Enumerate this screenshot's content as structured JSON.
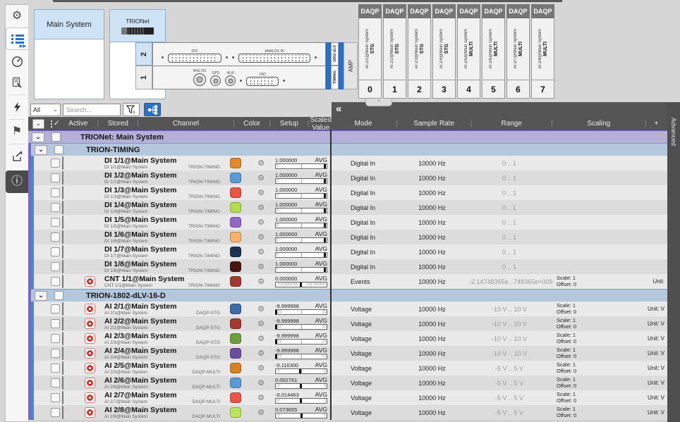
{
  "system_boxes": {
    "main_system": {
      "title": "Main System"
    },
    "trionet": {
      "title": "TRIONet"
    }
  },
  "hardware": {
    "slot2": {
      "number": "2",
      "dio_label": "DIO",
      "analog_label": "ANALOG IN",
      "module_tag": "1802-dLV"
    },
    "slot1": {
      "number": "1",
      "irig_label": "IRIG DC",
      "gps_label": "GPS",
      "aux_label": "AUX",
      "dio_label": "DIO",
      "module_tag": "TIMING"
    },
    "amp_label": "AMP",
    "daqp": [
      {
        "header": "DAQP",
        "channel": "AI 2/1@Main System",
        "mode": "STG",
        "slot": "0"
      },
      {
        "header": "DAQP",
        "channel": "AI 2/2@Main System",
        "mode": "STG",
        "slot": "1"
      },
      {
        "header": "DAQP",
        "channel": "AI 2/3@Main System",
        "mode": "STG",
        "slot": "2"
      },
      {
        "header": "DAQP",
        "channel": "AI 2/4@Main System",
        "mode": "STG",
        "slot": "3"
      },
      {
        "header": "DAQP",
        "channel": "AI 2/5@Main System",
        "mode": "MULTI",
        "slot": "4"
      },
      {
        "header": "DAQP",
        "channel": "AI 2/6@Main System",
        "mode": "MULTI",
        "slot": "5"
      },
      {
        "header": "DAQP",
        "channel": "AI 2/7@Main System",
        "mode": "MULTI",
        "slot": "6"
      },
      {
        "header": "DAQP",
        "channel": "AI 2/8@Main System",
        "mode": "MULTI",
        "slot": "7"
      }
    ]
  },
  "filter": {
    "type_value": "All",
    "search_placeholder": "Search..."
  },
  "panel": {
    "collapse_left": "«",
    "collapse_up": "⌃",
    "advanced": "Advanced",
    "plus": "+"
  },
  "icons": {
    "sidebar": [
      "settings-gear",
      "channel-list",
      "measurement-gauge",
      "report-document",
      "actions-lightning",
      "flag-marker",
      "export-share",
      "info"
    ],
    "gear_glyph": "⚙",
    "flag_glyph": "⚑",
    "info_glyph": "ⓘ",
    "chevron_down": "⌄"
  },
  "colors": {
    "accent_blue": "#2f6fc4",
    "group_purple": "#b6afd8",
    "group_blue": "#b4c7dd",
    "toggle_blue": "#1d5fa8",
    "stored_red": "#c23b2e",
    "header_dark": "#555555"
  },
  "table": {
    "left_columns": [
      "Active",
      "Stored",
      "Channel",
      "Color",
      "Setup",
      "Scaled Value"
    ],
    "right_columns": [
      "Mode",
      "Sample Rate",
      "Range",
      "Scaling"
    ],
    "rows": [
      {
        "type": "group",
        "level": 1,
        "label": "TRIONet: Main System"
      },
      {
        "type": "group",
        "level": 2,
        "label": "TRION-TIMING"
      },
      {
        "type": "channel",
        "name": "DI 1/1@Main System",
        "sub": "DI 1/1@Main System",
        "module": "TRION-TIMING",
        "color": "#E0892D",
        "stored": false,
        "value": "1.000000",
        "avg": "AVG",
        "bar_min": "0",
        "bar_max": "",
        "needle": 0.97,
        "mode": "Digital In",
        "rate": "10000 Hz",
        "range": "0 .. 1",
        "scale": "",
        "offset": "",
        "unit": ""
      },
      {
        "type": "channel",
        "name": "DI 1/2@Main System",
        "sub": "DI 1/2@Main System",
        "module": "TRION-TIMING",
        "color": "#5B9BD5",
        "stored": false,
        "value": "1.000000",
        "avg": "AVG",
        "bar_min": "0",
        "bar_max": "",
        "needle": 0.97,
        "mode": "Digital In",
        "rate": "10000 Hz",
        "range": "0 .. 1",
        "scale": "",
        "offset": "",
        "unit": ""
      },
      {
        "type": "channel",
        "name": "DI 1/3@Main System",
        "sub": "DI 1/3@Main System",
        "module": "TRION-TIMING",
        "color": "#EA5545",
        "stored": false,
        "value": "1.000000",
        "avg": "AVG",
        "bar_min": "0",
        "bar_max": "",
        "needle": 0.97,
        "mode": "Digital In",
        "rate": "10000 Hz",
        "range": "0 .. 1",
        "scale": "",
        "offset": "",
        "unit": ""
      },
      {
        "type": "channel",
        "name": "DI 1/4@Main System",
        "sub": "DI 1/4@Main System",
        "module": "TRION-TIMING",
        "color": "#B4DC50",
        "stored": false,
        "value": "1.000000",
        "avg": "AVG",
        "bar_min": "0",
        "bar_max": "",
        "needle": 0.97,
        "mode": "Digital In",
        "rate": "10000 Hz",
        "range": "0 .. 1",
        "scale": "",
        "offset": "",
        "unit": ""
      },
      {
        "type": "channel",
        "name": "DI 1/5@Main System",
        "sub": "DI 1/5@Main System",
        "module": "TRION-TIMING",
        "color": "#9168C8",
        "stored": false,
        "value": "1.000000",
        "avg": "AVG",
        "bar_min": "0",
        "bar_max": "",
        "needle": 0.97,
        "mode": "Digital In",
        "rate": "10000 Hz",
        "range": "0 .. 1",
        "scale": "",
        "offset": "",
        "unit": ""
      },
      {
        "type": "channel",
        "name": "DI 1/6@Main System",
        "sub": "DI 1/6@Main System",
        "module": "TRION-TIMING",
        "color": "#F8B26E",
        "stored": false,
        "value": "1.000000",
        "avg": "AVG",
        "bar_min": "0",
        "bar_max": "",
        "needle": 0.97,
        "mode": "Digital In",
        "rate": "10000 Hz",
        "range": "0 .. 1",
        "scale": "",
        "offset": "",
        "unit": ""
      },
      {
        "type": "channel",
        "name": "DI 1/7@Main System",
        "sub": "DI 1/7@Main System",
        "module": "TRION-TIMING",
        "color": "#1E3150",
        "stored": false,
        "value": "1.000000",
        "avg": "AVG",
        "bar_min": "0",
        "bar_max": "",
        "needle": 0.97,
        "mode": "Digital In",
        "rate": "10000 Hz",
        "range": "0 .. 1",
        "scale": "",
        "offset": "",
        "unit": ""
      },
      {
        "type": "channel",
        "name": "DI 1/8@Main System",
        "sub": "DI 1/8@Main System",
        "module": "TRION-TIMING",
        "color": "#471611",
        "stored": false,
        "value": "1.000000",
        "avg": "AVG",
        "bar_min": "0",
        "bar_max": "",
        "needle": 0.97,
        "mode": "Digital In",
        "rate": "10000 Hz",
        "range": "0 .. 1",
        "scale": "",
        "offset": "",
        "unit": ""
      },
      {
        "type": "channel",
        "name": "CNT 1/1@Main System",
        "sub": "CNT 1/1@Main System",
        "module": "TRION-TIMING",
        "color": "#A33A32",
        "stored": true,
        "value": "0.000000",
        "avg": "AVG",
        "bar_min": "-2147483648",
        "bar_max": "2147483647",
        "needle": 0.5,
        "mode": "Events",
        "rate": "10000 Hz",
        "range": "-2.14748365e...748365e+009",
        "scale": "Scale: 1",
        "offset": "Offset: 0",
        "unit": "Unit:"
      },
      {
        "type": "group",
        "level": 2,
        "label": "TRION-1802-dLV-16-D"
      },
      {
        "type": "channel",
        "name": "AI 2/1@Main System",
        "sub": "AI 2/1@Main System",
        "module": "DAQP-STG",
        "color": "#3C6CA5",
        "stored": true,
        "value": "-9.999998",
        "avg": "AVG",
        "bar_min": "-10",
        "bar_max": "10",
        "needle": 0.02,
        "mode": "Voltage",
        "rate": "10000 Hz",
        "range": "-10 V .. 10 V",
        "scale": "Scale: 1",
        "offset": "Offset: 0",
        "unit": "Unit: V"
      },
      {
        "type": "channel",
        "name": "AI 2/2@Main System",
        "sub": "AI 2/2@Main System",
        "module": "DAQP-STG",
        "color": "#A33A32",
        "stored": true,
        "value": "-9.999998",
        "avg": "AVG",
        "bar_min": "-10",
        "bar_max": "10",
        "needle": 0.02,
        "mode": "Voltage",
        "rate": "10000 Hz",
        "range": "-10 V .. 10 V",
        "scale": "Scale: 1",
        "offset": "Offset: 0",
        "unit": "Unit: V"
      },
      {
        "type": "channel",
        "name": "AI 2/3@Main System",
        "sub": "AI 2/3@Main System",
        "module": "DAQP-STG",
        "color": "#6E9E3C",
        "stored": true,
        "value": "-9.999998",
        "avg": "AVG",
        "bar_min": "-10",
        "bar_max": "10",
        "needle": 0.02,
        "mode": "Voltage",
        "rate": "10000 Hz",
        "range": "-10 V .. 10 V",
        "scale": "Scale: 1",
        "offset": "Offset: 0",
        "unit": "Unit: V"
      },
      {
        "type": "channel",
        "name": "AI 2/4@Main System",
        "sub": "AI 2/4@Main System",
        "module": "DAQP-STG",
        "color": "#6A4F9E",
        "stored": true,
        "value": "-9.999998",
        "avg": "AVG",
        "bar_min": "-10",
        "bar_max": "10",
        "needle": 0.02,
        "mode": "Voltage",
        "rate": "10000 Hz",
        "range": "-10 V .. 10 V",
        "scale": "Scale: 1",
        "offset": "Offset: 0",
        "unit": "Unit: V"
      },
      {
        "type": "channel",
        "name": "AI 2/5@Main System",
        "sub": "AI 2/5@Main System",
        "module": "DAQP-MULTI",
        "color": "#D8821E",
        "stored": true,
        "value": "-0.110300",
        "avg": "AVG",
        "bar_min": "-5",
        "bar_max": "5",
        "needle": 0.489,
        "mode": "Voltage",
        "rate": "10000 Hz",
        "range": "-5 V .. 5 V",
        "scale": "Scale: 1",
        "offset": "Offset: 0",
        "unit": "Unit: V"
      },
      {
        "type": "channel",
        "name": "AI 2/6@Main System",
        "sub": "AI 2/6@Main System",
        "module": "DAQP-MULTI",
        "color": "#5B9BD5",
        "stored": true,
        "value": "0.002761",
        "avg": "AVG",
        "bar_min": "-5",
        "bar_max": "5",
        "needle": 0.5,
        "mode": "Voltage",
        "rate": "10000 Hz",
        "range": "-5 V .. 5 V",
        "scale": "Scale: 1",
        "offset": "Offset: 0",
        "unit": "Unit: V"
      },
      {
        "type": "channel",
        "name": "AI 2/7@Main System",
        "sub": "AI 2/7@Main System",
        "module": "DAQP-MULTI",
        "color": "#EA5545",
        "stored": true,
        "value": "-0.014463",
        "avg": "AVG",
        "bar_min": "-5",
        "bar_max": "5",
        "needle": 0.499,
        "mode": "Voltage",
        "rate": "10000 Hz",
        "range": "-5 V .. 5 V",
        "scale": "Scale: 1",
        "offset": "Offset: 0",
        "unit": "Unit: V"
      },
      {
        "type": "channel",
        "name": "AI 2/8@Main System",
        "sub": "AI 2/8@Main System",
        "module": "DAQP-MULTI",
        "color": "#BCE35C",
        "stored": true,
        "value": "0.073655",
        "avg": "AVG",
        "bar_min": "-5",
        "bar_max": "5",
        "needle": 0.507,
        "mode": "Voltage",
        "rate": "10000 Hz",
        "range": "-5 V .. 5 V",
        "scale": "Scale: 1",
        "offset": "Offset: 0",
        "unit": "Unit: V"
      }
    ]
  }
}
